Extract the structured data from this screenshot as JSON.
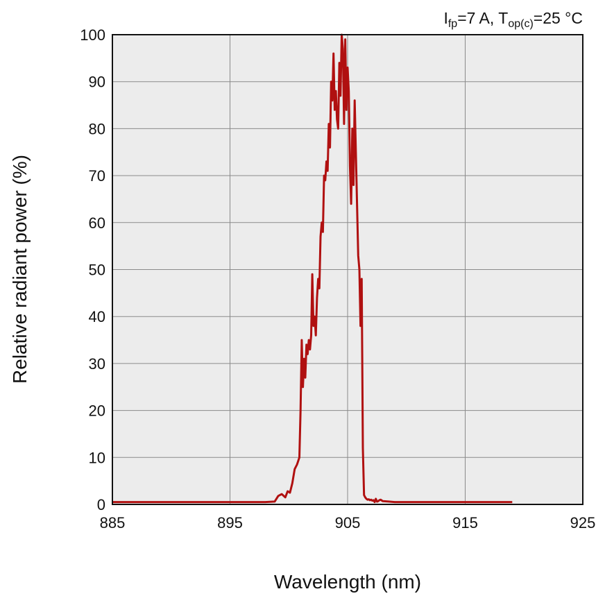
{
  "chart_data": {
    "type": "line",
    "annotation": {
      "i_symbol": "I",
      "i_sub": "fp",
      "i_value": "=7 A, ",
      "t_symbol": "T",
      "t_sub": "op(c)",
      "t_value": "=25 °C"
    },
    "xlabel": "Wavelength (nm)",
    "ylabel": "Relative radiant power (%)",
    "xlim": [
      885,
      925
    ],
    "ylim": [
      0,
      100
    ],
    "xticks": [
      "885",
      "895",
      "905",
      "915",
      "925"
    ],
    "yticks": [
      "0",
      "10",
      "20",
      "30",
      "40",
      "50",
      "60",
      "70",
      "80",
      "90",
      "100"
    ],
    "grid": true,
    "line_color": "#b01010",
    "background_color": "#ececec",
    "series": [
      {
        "x": [
          885.0,
          890.0,
          895.0,
          898.0,
          898.8,
          899.1,
          899.4,
          899.7,
          899.9,
          900.1,
          900.3,
          900.5,
          900.7,
          900.9,
          901.0,
          901.1,
          901.2,
          901.3,
          901.4,
          901.5,
          901.6,
          901.7,
          901.8,
          901.9,
          902.0,
          902.1,
          902.2,
          902.3,
          902.4,
          902.5,
          902.6,
          902.7,
          902.8,
          902.9,
          903.0,
          903.1,
          903.2,
          903.3,
          903.4,
          903.5,
          903.6,
          903.7,
          903.8,
          903.9,
          904.0,
          904.1,
          904.2,
          904.3,
          904.4,
          904.5,
          904.6,
          904.7,
          904.8,
          904.9,
          905.0,
          905.1,
          905.2,
          905.3,
          905.4,
          905.5,
          905.6,
          905.7,
          905.8,
          905.9,
          906.0,
          906.1,
          906.2,
          906.3,
          906.4,
          906.5,
          906.6,
          906.7,
          906.8,
          906.9,
          907.0,
          907.1,
          907.2,
          907.3,
          907.4,
          907.5,
          907.6,
          907.7,
          907.8,
          908.0,
          908.5,
          909.0,
          909.5,
          910.0,
          910.5,
          911.0,
          911.5,
          912.0,
          912.5,
          913.0,
          914.0,
          916.0,
          918.0,
          919.0
        ],
        "y": [
          0.5,
          0.5,
          0.5,
          0.5,
          0.6,
          1.8,
          2.2,
          1.5,
          2.8,
          2.5,
          4.5,
          7.5,
          8.5,
          10,
          20,
          35,
          25,
          31,
          27,
          34,
          32,
          35,
          33,
          36,
          49,
          38,
          40,
          36,
          44,
          48,
          46,
          57,
          60,
          58,
          70,
          69,
          73,
          71,
          81,
          76,
          90,
          86,
          96,
          84,
          88,
          82,
          80,
          94,
          87,
          100,
          97,
          81,
          99,
          84,
          93,
          88,
          72,
          64,
          80,
          68,
          86,
          75,
          64,
          53,
          50,
          38,
          48,
          12,
          2,
          1.5,
          1.2,
          1.0,
          1.1,
          0.9,
          1.0,
          0.8,
          0.9,
          0.5,
          1.2,
          0.6,
          0.7,
          0.9,
          1.0,
          0.7,
          0.6,
          0.5,
          0.5,
          0.5,
          0.5,
          0.5,
          0.5,
          0.5,
          0.5,
          0.5,
          0.5,
          0.5,
          0.5,
          0.5
        ]
      }
    ]
  }
}
